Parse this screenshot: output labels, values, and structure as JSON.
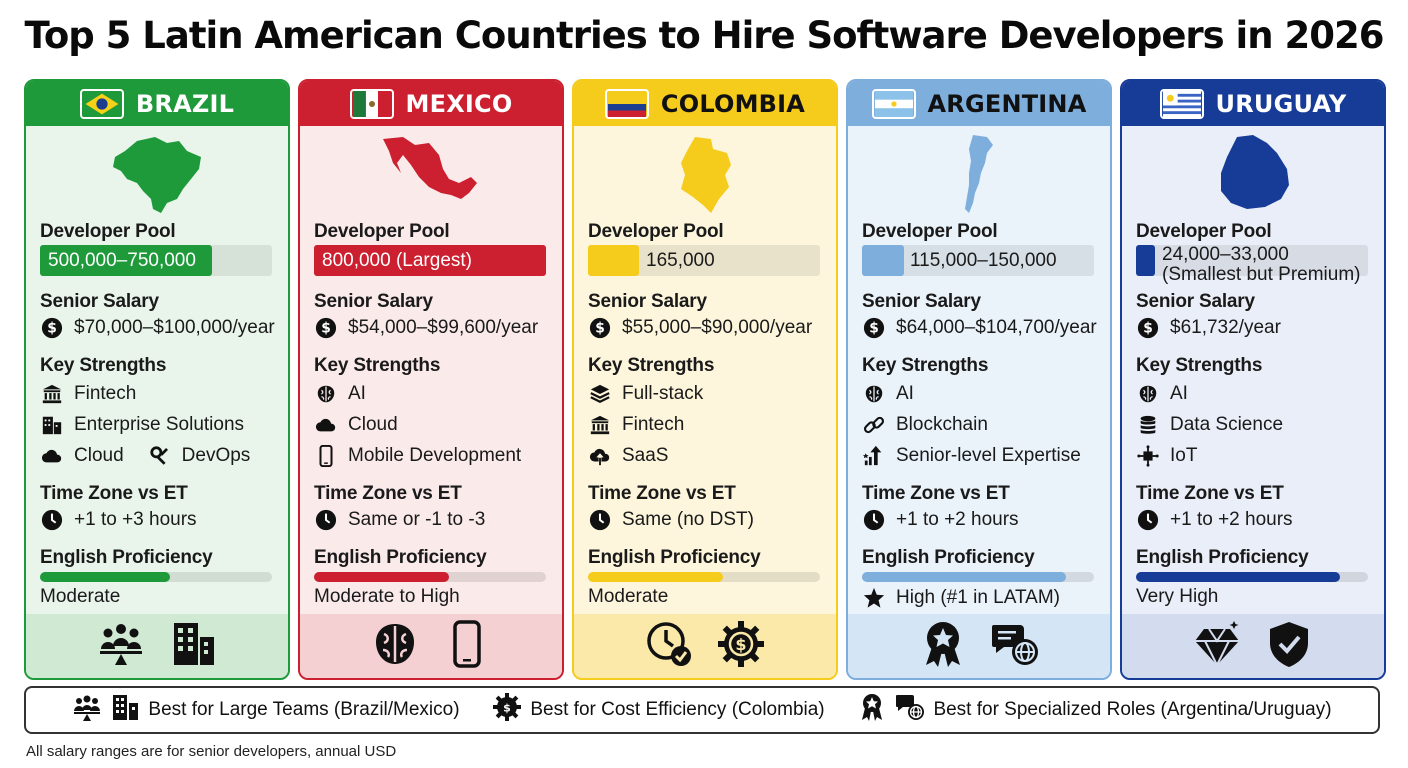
{
  "title": "Top 5 Latin American Countries to Hire Software Developers in 2026",
  "labels": {
    "pool": "Developer Pool",
    "salary": "Senior Salary",
    "strengths": "Key Strengths",
    "timezone": "Time Zone vs ET",
    "english": "English Proficiency"
  },
  "countries": [
    {
      "name": "BRAZIL",
      "accent": "#1e9a3a",
      "pool": "500,000–750,000",
      "pool_fill": 0.74,
      "salary": "$70,000–$100,000/year",
      "strengths": [
        "Fintech",
        "Enterprise Solutions",
        "Cloud",
        "DevOps"
      ],
      "timezone": "+1 to +3 hours",
      "english": "Moderate",
      "english_level": 0.56
    },
    {
      "name": "MEXICO",
      "accent": "#cc1f2f",
      "pool": "800,000 (Largest)",
      "pool_fill": 1.0,
      "salary": "$54,000–$99,600/year",
      "strengths": [
        "AI",
        "Cloud",
        "Mobile Development"
      ],
      "timezone": "Same or -1 to -3",
      "english": "Moderate to High",
      "english_level": 0.58
    },
    {
      "name": "COLOMBIA",
      "accent": "#f5cb1c",
      "pool": "165,000",
      "pool_fill": 0.22,
      "salary": "$55,000–$90,000/year",
      "strengths": [
        "Full-stack",
        "Fintech",
        "SaaS"
      ],
      "timezone": "Same (no DST)",
      "english": "Moderate",
      "english_level": 0.58
    },
    {
      "name": "ARGENTINA",
      "accent": "#7eaedc",
      "pool": "115,000–150,000",
      "pool_fill": 0.18,
      "salary": "$64,000–$104,700/year",
      "strengths": [
        "AI",
        "Blockchain",
        "Senior-level Expertise"
      ],
      "timezone": "+1 to +2 hours",
      "english": "High (#1 in LATAM)",
      "english_level": 0.88
    },
    {
      "name": "URUGUAY",
      "accent": "#173c98",
      "pool": "24,000–33,000",
      "pool_note": "(Smallest but Premium)",
      "pool_fill": 0.09,
      "salary": "$61,732/year",
      "strengths": [
        "AI",
        "Data Science",
        "IoT"
      ],
      "timezone": "+1 to +2 hours",
      "english": "Very High",
      "english_level": 0.88
    }
  ],
  "legend": [
    "Best for Large Teams (Brazil/Mexico)",
    "Best for Cost Efficiency (Colombia)",
    "Best for Specialized Roles (Argentina/Uruguay)"
  ],
  "footnote": "All salary ranges are for senior developers, annual USD"
}
